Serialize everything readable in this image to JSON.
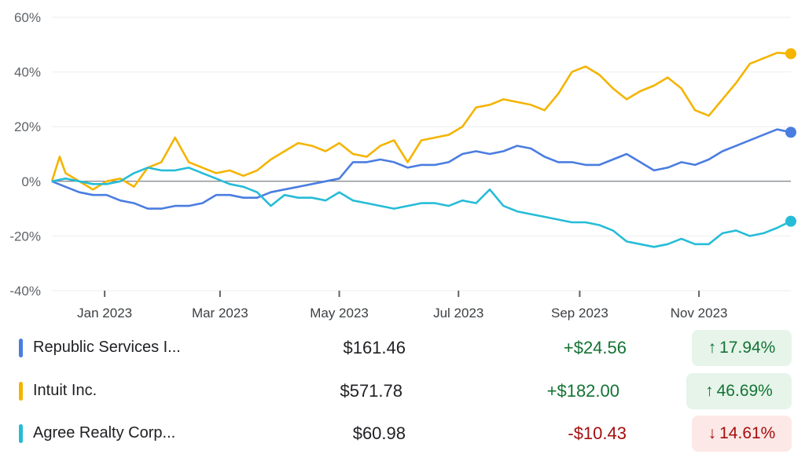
{
  "chart_data": {
    "type": "line",
    "ylabel_format": "percent",
    "ylim": [
      -40,
      60
    ],
    "yticks": [
      "60%",
      "40%",
      "20%",
      "0%",
      "-20%",
      "-40%"
    ],
    "ytick_values": [
      60,
      40,
      20,
      0,
      -20,
      -40
    ],
    "xticks": [
      "Jan 2023",
      "Mar 2023",
      "May 2023",
      "Jul 2023",
      "Sep 2023",
      "Nov 2023"
    ],
    "xtick_dates": [
      "2023-01-01",
      "2023-03-01",
      "2023-05-01",
      "2023-07-01",
      "2023-09-01",
      "2023-11-01"
    ],
    "grid": true,
    "series": [
      {
        "name": "Republic Services I...",
        "color": "#4a7de0",
        "points": [
          [
            "2022-12-05",
            0
          ],
          [
            "2022-12-12",
            -2
          ],
          [
            "2022-12-19",
            -4
          ],
          [
            "2022-12-26",
            -5
          ],
          [
            "2023-01-02",
            -5
          ],
          [
            "2023-01-09",
            -7
          ],
          [
            "2023-01-16",
            -8
          ],
          [
            "2023-01-23",
            -10
          ],
          [
            "2023-01-30",
            -10
          ],
          [
            "2023-02-06",
            -9
          ],
          [
            "2023-02-13",
            -9
          ],
          [
            "2023-02-20",
            -8
          ],
          [
            "2023-02-27",
            -5
          ],
          [
            "2023-03-06",
            -5
          ],
          [
            "2023-03-13",
            -6
          ],
          [
            "2023-03-20",
            -6
          ],
          [
            "2023-03-27",
            -4
          ],
          [
            "2023-04-03",
            -3
          ],
          [
            "2023-04-10",
            -2
          ],
          [
            "2023-04-17",
            -1
          ],
          [
            "2023-04-24",
            0
          ],
          [
            "2023-05-01",
            1
          ],
          [
            "2023-05-08",
            7
          ],
          [
            "2023-05-15",
            7
          ],
          [
            "2023-05-22",
            8
          ],
          [
            "2023-05-29",
            7
          ],
          [
            "2023-06-05",
            5
          ],
          [
            "2023-06-12",
            6
          ],
          [
            "2023-06-19",
            6
          ],
          [
            "2023-06-26",
            7
          ],
          [
            "2023-07-03",
            10
          ],
          [
            "2023-07-10",
            11
          ],
          [
            "2023-07-17",
            10
          ],
          [
            "2023-07-24",
            11
          ],
          [
            "2023-07-31",
            13
          ],
          [
            "2023-08-07",
            12
          ],
          [
            "2023-08-14",
            9
          ],
          [
            "2023-08-21",
            7
          ],
          [
            "2023-08-28",
            7
          ],
          [
            "2023-09-04",
            6
          ],
          [
            "2023-09-11",
            6
          ],
          [
            "2023-09-18",
            8
          ],
          [
            "2023-09-25",
            10
          ],
          [
            "2023-10-02",
            7
          ],
          [
            "2023-10-09",
            4
          ],
          [
            "2023-10-16",
            5
          ],
          [
            "2023-10-23",
            7
          ],
          [
            "2023-10-30",
            6
          ],
          [
            "2023-11-06",
            8
          ],
          [
            "2023-11-13",
            11
          ],
          [
            "2023-11-20",
            13
          ],
          [
            "2023-11-27",
            15
          ],
          [
            "2023-12-04",
            17
          ],
          [
            "2023-12-11",
            19
          ],
          [
            "2023-12-18",
            17.94
          ]
        ]
      },
      {
        "name": "Intuit Inc.",
        "color": "#f4b400",
        "points": [
          [
            "2022-12-05",
            0
          ],
          [
            "2022-12-09",
            9
          ],
          [
            "2022-12-12",
            3
          ],
          [
            "2022-12-19",
            0
          ],
          [
            "2022-12-26",
            -3
          ],
          [
            "2023-01-02",
            0
          ],
          [
            "2023-01-09",
            1
          ],
          [
            "2023-01-16",
            -2
          ],
          [
            "2023-01-23",
            5
          ],
          [
            "2023-01-30",
            7
          ],
          [
            "2023-02-06",
            16
          ],
          [
            "2023-02-13",
            7
          ],
          [
            "2023-02-20",
            5
          ],
          [
            "2023-02-27",
            3
          ],
          [
            "2023-03-06",
            4
          ],
          [
            "2023-03-13",
            2
          ],
          [
            "2023-03-20",
            4
          ],
          [
            "2023-03-27",
            8
          ],
          [
            "2023-04-03",
            11
          ],
          [
            "2023-04-10",
            14
          ],
          [
            "2023-04-17",
            13
          ],
          [
            "2023-04-24",
            11
          ],
          [
            "2023-05-01",
            14
          ],
          [
            "2023-05-08",
            10
          ],
          [
            "2023-05-15",
            9
          ],
          [
            "2023-05-22",
            13
          ],
          [
            "2023-05-29",
            15
          ],
          [
            "2023-06-05",
            7
          ],
          [
            "2023-06-12",
            15
          ],
          [
            "2023-06-19",
            16
          ],
          [
            "2023-06-26",
            17
          ],
          [
            "2023-07-03",
            20
          ],
          [
            "2023-07-10",
            27
          ],
          [
            "2023-07-17",
            28
          ],
          [
            "2023-07-24",
            30
          ],
          [
            "2023-07-31",
            29
          ],
          [
            "2023-08-07",
            28
          ],
          [
            "2023-08-14",
            26
          ],
          [
            "2023-08-21",
            32
          ],
          [
            "2023-08-28",
            40
          ],
          [
            "2023-09-04",
            42
          ],
          [
            "2023-09-11",
            39
          ],
          [
            "2023-09-18",
            34
          ],
          [
            "2023-09-25",
            30
          ],
          [
            "2023-10-02",
            33
          ],
          [
            "2023-10-09",
            35
          ],
          [
            "2023-10-16",
            38
          ],
          [
            "2023-10-23",
            34
          ],
          [
            "2023-10-30",
            26
          ],
          [
            "2023-11-06",
            24
          ],
          [
            "2023-11-13",
            30
          ],
          [
            "2023-11-20",
            36
          ],
          [
            "2023-11-27",
            43
          ],
          [
            "2023-12-04",
            45
          ],
          [
            "2023-12-11",
            47
          ],
          [
            "2023-12-18",
            46.69
          ]
        ]
      },
      {
        "name": "Agree Realty Corp...",
        "color": "#26bcd7",
        "points": [
          [
            "2022-12-05",
            0
          ],
          [
            "2022-12-12",
            1
          ],
          [
            "2022-12-19",
            0
          ],
          [
            "2022-12-26",
            -1
          ],
          [
            "2023-01-02",
            -1
          ],
          [
            "2023-01-09",
            0
          ],
          [
            "2023-01-16",
            3
          ],
          [
            "2023-01-23",
            5
          ],
          [
            "2023-01-30",
            4
          ],
          [
            "2023-02-06",
            4
          ],
          [
            "2023-02-13",
            5
          ],
          [
            "2023-02-20",
            3
          ],
          [
            "2023-02-27",
            1
          ],
          [
            "2023-03-06",
            -1
          ],
          [
            "2023-03-13",
            -2
          ],
          [
            "2023-03-20",
            -4
          ],
          [
            "2023-03-27",
            -9
          ],
          [
            "2023-04-03",
            -5
          ],
          [
            "2023-04-10",
            -6
          ],
          [
            "2023-04-17",
            -6
          ],
          [
            "2023-04-24",
            -7
          ],
          [
            "2023-05-01",
            -4
          ],
          [
            "2023-05-08",
            -7
          ],
          [
            "2023-05-15",
            -8
          ],
          [
            "2023-05-22",
            -9
          ],
          [
            "2023-05-29",
            -10
          ],
          [
            "2023-06-05",
            -9
          ],
          [
            "2023-06-12",
            -8
          ],
          [
            "2023-06-19",
            -8
          ],
          [
            "2023-06-26",
            -9
          ],
          [
            "2023-07-03",
            -7
          ],
          [
            "2023-07-10",
            -8
          ],
          [
            "2023-07-17",
            -3
          ],
          [
            "2023-07-24",
            -9
          ],
          [
            "2023-07-31",
            -11
          ],
          [
            "2023-08-07",
            -12
          ],
          [
            "2023-08-14",
            -13
          ],
          [
            "2023-08-21",
            -14
          ],
          [
            "2023-08-28",
            -15
          ],
          [
            "2023-09-04",
            -15
          ],
          [
            "2023-09-11",
            -16
          ],
          [
            "2023-09-18",
            -18
          ],
          [
            "2023-09-25",
            -22
          ],
          [
            "2023-10-02",
            -23
          ],
          [
            "2023-10-09",
            -24
          ],
          [
            "2023-10-16",
            -23
          ],
          [
            "2023-10-23",
            -21
          ],
          [
            "2023-10-30",
            -23
          ],
          [
            "2023-11-06",
            -23
          ],
          [
            "2023-11-13",
            -19
          ],
          [
            "2023-11-20",
            -18
          ],
          [
            "2023-11-27",
            -20
          ],
          [
            "2023-12-04",
            -19
          ],
          [
            "2023-12-11",
            -17
          ],
          [
            "2023-12-18",
            -14.61
          ]
        ]
      }
    ]
  },
  "legend": [
    {
      "name": "Republic Services I...",
      "price": "$161.46",
      "change": "+$24.56",
      "pct": "17.94%",
      "direction": "up",
      "arrow": "↑",
      "color": "#4a7de0"
    },
    {
      "name": "Intuit Inc.",
      "price": "$571.78",
      "change": "+$182.00",
      "pct": "46.69%",
      "direction": "up",
      "arrow": "↑",
      "color": "#f4b400"
    },
    {
      "name": "Agree Realty Corp...",
      "price": "$60.98",
      "change": "-$10.43",
      "pct": "14.61%",
      "direction": "down",
      "arrow": "↓",
      "color": "#26bcd7"
    }
  ]
}
